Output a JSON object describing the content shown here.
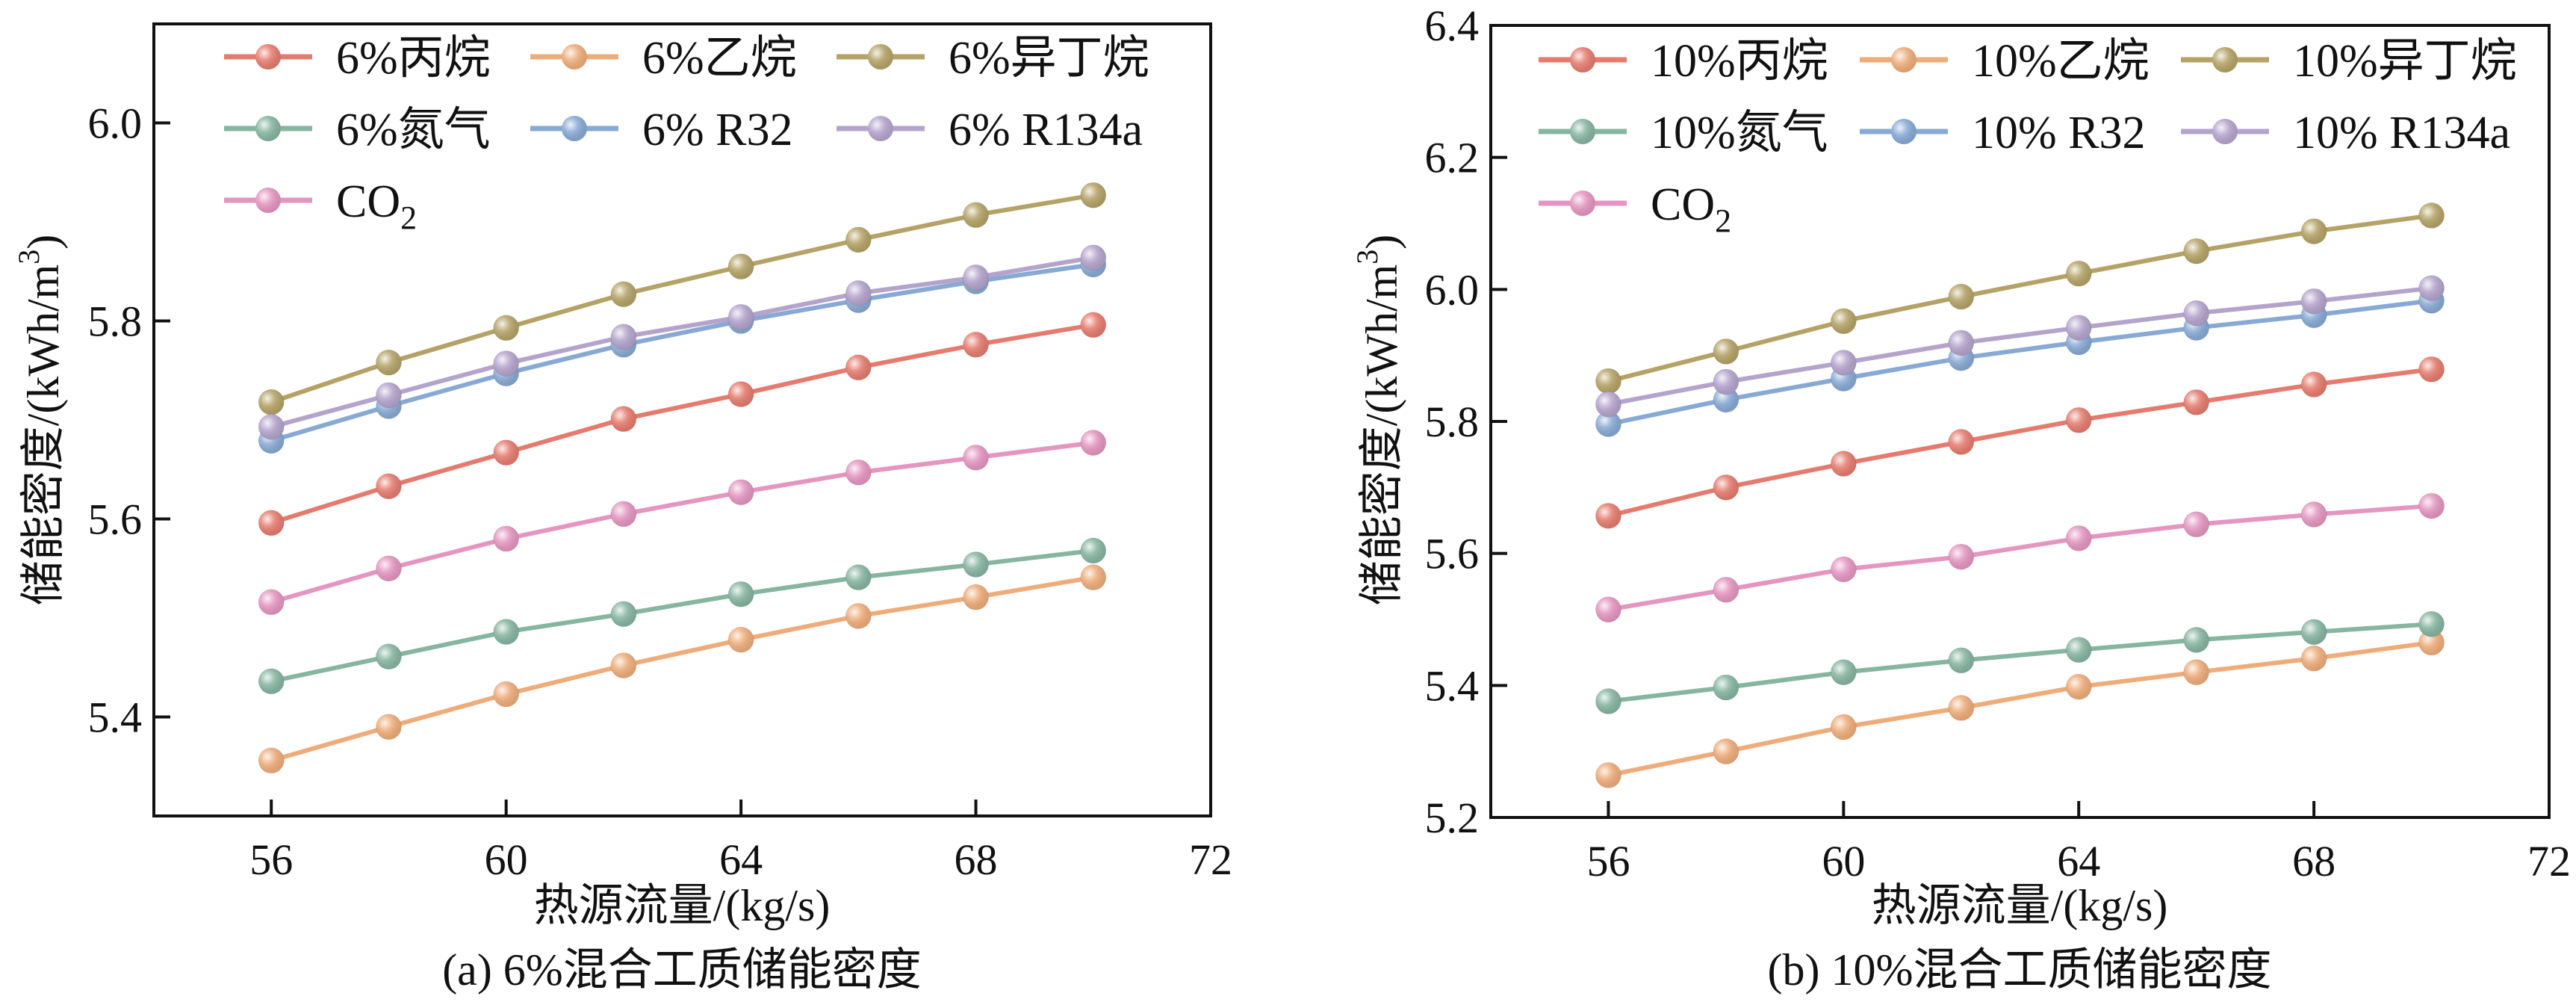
{
  "chart_data": [
    {
      "type": "line",
      "caption": "(a) 6%混合工质储能密度",
      "xlabel": "热源流量/(kg/s)",
      "ylabel": "储能密度/(kWh/m",
      "ylabel_sup": "3",
      "ylabel_close": ")",
      "xlim": [
        54,
        72
      ],
      "ylim": [
        5.3,
        6.1
      ],
      "xticks": [
        56,
        60,
        64,
        68,
        72
      ],
      "yticks": [
        5.4,
        5.6,
        5.8,
        6.0
      ],
      "ytick_labels": [
        "5.4",
        "5.6",
        "5.8",
        "6.0"
      ],
      "legend_position": "top",
      "x": [
        56,
        58,
        60,
        62,
        64,
        66,
        68,
        70
      ],
      "series": [
        {
          "name": "6%丙烷",
          "color": "#e57b6e",
          "values": [
            5.596,
            5.633,
            5.667,
            5.701,
            5.726,
            5.753,
            5.776,
            5.796
          ]
        },
        {
          "name": "6%乙烷",
          "color": "#eeac7a",
          "values": [
            5.356,
            5.39,
            5.423,
            5.452,
            5.478,
            5.502,
            5.521,
            5.541
          ]
        },
        {
          "name": "6%异丁烷",
          "color": "#b4a266",
          "values": [
            5.718,
            5.758,
            5.793,
            5.827,
            5.855,
            5.882,
            5.907,
            5.927
          ]
        },
        {
          "name": "6%氮气",
          "color": "#86b5a0",
          "values": [
            5.436,
            5.461,
            5.486,
            5.504,
            5.524,
            5.541,
            5.554,
            5.568
          ]
        },
        {
          "name": "6% R32",
          "color": "#87a9d4",
          "values": [
            5.679,
            5.714,
            5.747,
            5.776,
            5.8,
            5.821,
            5.84,
            5.857
          ]
        },
        {
          "name": "6% R134a",
          "color": "#b4a4cc",
          "values": [
            5.693,
            5.725,
            5.757,
            5.784,
            5.804,
            5.828,
            5.844,
            5.864
          ]
        },
        {
          "name": "CO",
          "name_sub": "2",
          "color": "#e495c0",
          "values": [
            5.516,
            5.55,
            5.58,
            5.605,
            5.627,
            5.647,
            5.662,
            5.677
          ]
        }
      ]
    },
    {
      "type": "line",
      "caption": "(b) 10%混合工质储能密度",
      "xlabel": "热源流量/(kg/s)",
      "ylabel": "储能密度/(kWh/m",
      "ylabel_sup": "3",
      "ylabel_close": ")",
      "xlim": [
        54,
        72
      ],
      "ylim": [
        5.2,
        6.4
      ],
      "xticks": [
        56,
        60,
        64,
        68,
        72
      ],
      "yticks": [
        5.2,
        5.4,
        5.6,
        5.8,
        6.0,
        6.2,
        6.4
      ],
      "ytick_labels": [
        "5.2",
        "5.4",
        "5.6",
        "5.8",
        "6.0",
        "6.2",
        "6.4"
      ],
      "legend_position": "top",
      "x": [
        56,
        58,
        60,
        62,
        64,
        66,
        68,
        70
      ],
      "series": [
        {
          "name": "10%丙烷",
          "color": "#e57b6e",
          "values": [
            5.657,
            5.7,
            5.736,
            5.769,
            5.802,
            5.829,
            5.856,
            5.879
          ]
        },
        {
          "name": "10%乙烷",
          "color": "#eeac7a",
          "values": [
            5.264,
            5.3,
            5.337,
            5.366,
            5.398,
            5.42,
            5.441,
            5.465
          ]
        },
        {
          "name": "10%异丁烷",
          "color": "#b4a266",
          "values": [
            5.861,
            5.906,
            5.952,
            5.989,
            6.024,
            6.058,
            6.088,
            6.112
          ]
        },
        {
          "name": "10%氮气",
          "color": "#86b5a0",
          "values": [
            5.376,
            5.397,
            5.42,
            5.438,
            5.454,
            5.469,
            5.481,
            5.493
          ]
        },
        {
          "name": "10% R32",
          "color": "#87a9d4",
          "values": [
            5.796,
            5.833,
            5.865,
            5.896,
            5.92,
            5.942,
            5.961,
            5.983
          ]
        },
        {
          "name": "10% R134a",
          "color": "#b4a4cc",
          "values": [
            5.826,
            5.86,
            5.889,
            5.919,
            5.942,
            5.964,
            5.982,
            6.002
          ]
        },
        {
          "name": "CO",
          "name_sub": "2",
          "color": "#e495c0",
          "values": [
            5.515,
            5.545,
            5.576,
            5.595,
            5.623,
            5.644,
            5.659,
            5.672
          ]
        }
      ]
    }
  ]
}
